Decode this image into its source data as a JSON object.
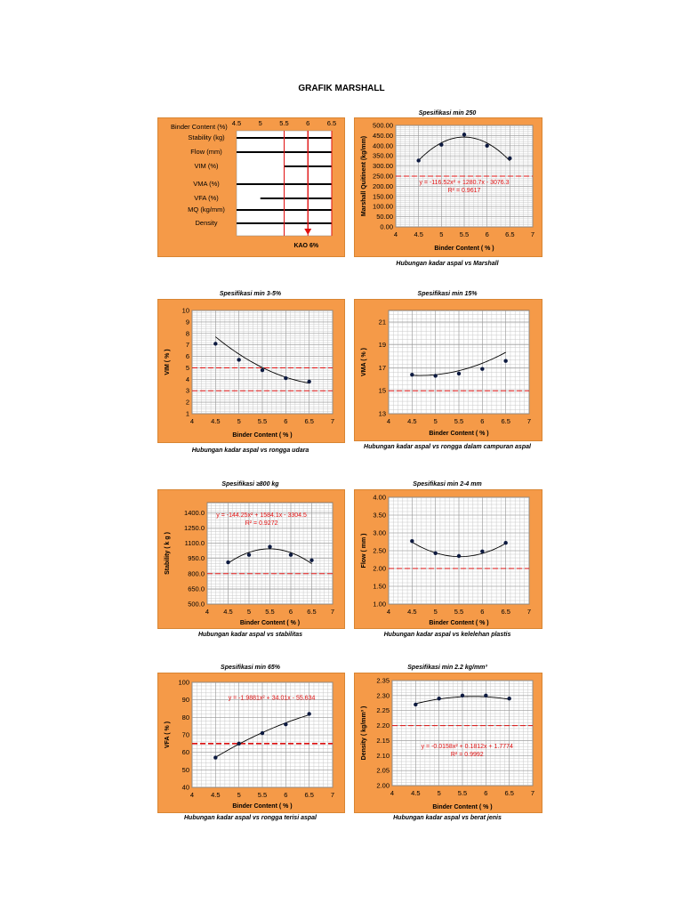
{
  "page": {
    "title": "GRAFIK MARSHALL"
  },
  "summary": {
    "header_label": "Binder Content (%)",
    "x_values": [
      "4.5",
      "5",
      "5.5",
      "6",
      "6.5"
    ],
    "rows": [
      {
        "label": "Stability (kg)",
        "range": [
          4.5,
          6.5
        ]
      },
      {
        "label": "Flow  (mm)",
        "range": [
          4.5,
          6.5
        ]
      },
      {
        "label": "VIM    (%)",
        "range": [
          5.5,
          6.5
        ]
      },
      {
        "label": "VMA (%)",
        "range": [
          4.5,
          6.5
        ]
      },
      {
        "label": "VFA (%)",
        "range": [
          5.0,
          6.5
        ]
      },
      {
        "label": "MQ (kg/mm)",
        "range": [
          4.5,
          6.5
        ]
      },
      {
        "label": "Density",
        "range": [
          4.5,
          6.5
        ]
      }
    ],
    "red_lines": [
      5.5,
      6.0,
      6.5
    ],
    "kao_label": "KAO 6%",
    "kao_value": 6.0
  },
  "chart_data": [
    {
      "id": "marshall",
      "type": "scatter",
      "spec": "Spesifikasi min 250",
      "caption": "Hubungan kadar aspal vs Marshall",
      "xlabel": "Binder Content ( % )",
      "ylabel": "Marshall Quitinent (kg/mm)",
      "x": [
        4.5,
        5.0,
        5.5,
        6.0,
        6.5
      ],
      "y": [
        327,
        405,
        455,
        400,
        338
      ],
      "xlim": [
        4,
        7
      ],
      "ylim": [
        0,
        500
      ],
      "ystep": 50,
      "ydec": 2,
      "spec_line": 250,
      "fit": [
        -116.52,
        1280.7,
        -3076.3
      ],
      "equation": "y = -116.52x² + 1280.7x - 3076.3",
      "r2": "R² = 0.9617",
      "eq_pos": [
        5.5,
        210
      ],
      "grid": true
    },
    {
      "id": "vim",
      "type": "scatter",
      "spec": "Spesifikasi min 3-5%",
      "caption": "Hubungan kadar aspal vs rongga udara",
      "xlabel": "Binder Content ( % )",
      "ylabel": "VIM ( % )",
      "x": [
        4.5,
        5.0,
        5.5,
        6.0,
        6.5
      ],
      "y": [
        7.1,
        5.7,
        4.8,
        4.1,
        3.8
      ],
      "xlim": [
        4,
        7
      ],
      "ylim": [
        1,
        10
      ],
      "ystep": 1,
      "ydec": 0,
      "spec_line": [
        5,
        3
      ],
      "fit": [
        0.66,
        -9.28,
        36.1
      ],
      "equation": "",
      "r2": "",
      "grid": true
    },
    {
      "id": "vma",
      "type": "scatter",
      "spec": "Spesifikasi min 15%",
      "caption": "Hubungan kadar aspal vs rongga dalam campuran aspal",
      "xlabel": "Binder Content ( % )",
      "ylabel": "VMA ( % )",
      "x": [
        4.5,
        5.0,
        5.5,
        6.0,
        6.5
      ],
      "y": [
        16.4,
        16.3,
        16.5,
        16.9,
        17.6
      ],
      "xlim": [
        4,
        7
      ],
      "ylim": [
        13,
        22
      ],
      "ystep": 2,
      "ydec": 0,
      "spec_line": 15,
      "fit": [
        0.6,
        -5.6,
        29.4
      ],
      "equation": "",
      "r2": "",
      "grid": true
    },
    {
      "id": "stability",
      "type": "scatter",
      "spec": "Spesifikasi ≥800 kg",
      "caption": "Hubungan kadar aspal vs stabilitas",
      "xlabel": "Binder Content ( % )",
      "ylabel": "Stability ( k g )",
      "x": [
        4.5,
        5.0,
        5.5,
        6.0,
        6.5
      ],
      "y": [
        912,
        985,
        1065,
        985,
        932
      ],
      "xlim": [
        4,
        7
      ],
      "ylim": [
        500,
        1500
      ],
      "ystep": 150,
      "ydec": 1,
      "spec_line": 800,
      "fit": [
        -144.25,
        1584.1,
        -3304.5
      ],
      "equation": "y = -144.25x² + 1584.1x - 3304.5",
      "r2": "R² = 0.9272",
      "eq_pos": [
        5.3,
        1360
      ],
      "grid": true
    },
    {
      "id": "flow",
      "type": "scatter",
      "spec": "Spesifikasi min 2-4 mm",
      "caption": "Hubungan kadar aspal vs kelelehan plastis",
      "xlabel": "Binder Content ( % )",
      "ylabel": "Flow ( mm )",
      "x": [
        4.5,
        5.0,
        5.5,
        6.0,
        6.5
      ],
      "y": [
        2.77,
        2.43,
        2.35,
        2.48,
        2.72
      ],
      "xlim": [
        4,
        7
      ],
      "ylim": [
        1,
        4
      ],
      "ystep": 0.5,
      "ydec": 2,
      "spec_line": 2,
      "fit": [
        0.389,
        -4.297,
        14.2
      ],
      "equation": "",
      "r2": "",
      "grid": true
    },
    {
      "id": "vfa",
      "type": "scatter",
      "spec": "Spesifikasi min 65%",
      "caption": "Hubungan kadar aspal vs rongga terisi aspal",
      "xlabel": "Binder Content ( % )",
      "ylabel": "VFA ( % )",
      "x": [
        4.5,
        5.0,
        5.5,
        6.0,
        6.5
      ],
      "y": [
        57,
        65,
        71,
        76,
        82
      ],
      "xlim": [
        4,
        7
      ],
      "ylim": [
        40,
        100
      ],
      "ystep": 10,
      "ydec": 0,
      "spec_line": 65,
      "fit": [
        -1.9881,
        34.01,
        -55.634
      ],
      "equation": "y = -1.9881x² + 34.01x - 55.634",
      "r2": "",
      "eq_pos": [
        5.7,
        90
      ],
      "grid": true
    },
    {
      "id": "density",
      "type": "scatter",
      "spec": "Spesifikasi min 2.2 kg/mm³",
      "caption": "Hubungan kadar aspal vs berat jenis",
      "xlabel": "Binder Content ( % )",
      "ylabel": "Density  ( kg/mm³ )",
      "x": [
        4.5,
        5.0,
        5.5,
        6.0,
        6.5
      ],
      "y": [
        2.27,
        2.29,
        2.3,
        2.3,
        2.29
      ],
      "xlim": [
        4,
        7
      ],
      "ylim": [
        2,
        2.35
      ],
      "ystep": 0.05,
      "ydec": 2,
      "spec_line": 2.2,
      "fit": [
        -0.0158,
        0.1812,
        1.7774
      ],
      "equation": "y = -0.0158x² + 0.1812x + 1.7774",
      "r2": "R² = 0.9992",
      "eq_pos": [
        5.6,
        2.125
      ],
      "grid": true
    }
  ]
}
